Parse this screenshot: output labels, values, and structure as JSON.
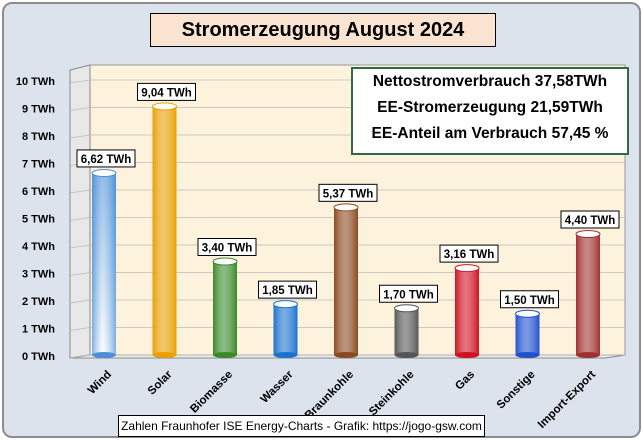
{
  "chart_data": {
    "type": "bar",
    "title": "Stromerzeugung August 2024",
    "categories": [
      "Wind",
      "Solar",
      "Biomasse",
      "Wasser",
      "Braunkohle",
      "Steinkohle",
      "Gas",
      "Sonstige",
      "Import-Export"
    ],
    "values": [
      6.62,
      9.04,
      3.4,
      1.85,
      5.37,
      1.7,
      3.16,
      1.5,
      4.4
    ],
    "data_labels": [
      "6,62 TWh",
      "9,04 TWh",
      "3,40 TWh",
      "1,85 TWh",
      "5,37 TWh",
      "1,70 TWh",
      "3,16 TWh",
      "1,50 TWh",
      "4,40 TWh"
    ],
    "colors": [
      "#4a8fd8",
      "#e8a000",
      "#3a8a2a",
      "#1a72d0",
      "#8a4a20",
      "#555555",
      "#d01020",
      "#2050d0",
      "#a03030"
    ],
    "ylim": [
      0,
      10
    ],
    "yticks": [
      "0 TWh",
      "1 TWh",
      "2 TWh",
      "3 TWh",
      "4 TWh",
      "5 TWh",
      "6 TWh",
      "7 TWh",
      "8 TWh",
      "9 TWh",
      "10 TWh"
    ],
    "xlabel": "",
    "ylabel": "",
    "grid": true
  },
  "info": {
    "line1": "Nettostromverbrauch 37,58TWh",
    "line2": "EE-Stromerzeugung 21,59TWh",
    "line3": "EE-Anteil am Verbrauch 57,45 %"
  },
  "footer": "Zahlen Fraunhofer ISE  Energy-Charts - Grafik: https://jogo-gsw.com"
}
